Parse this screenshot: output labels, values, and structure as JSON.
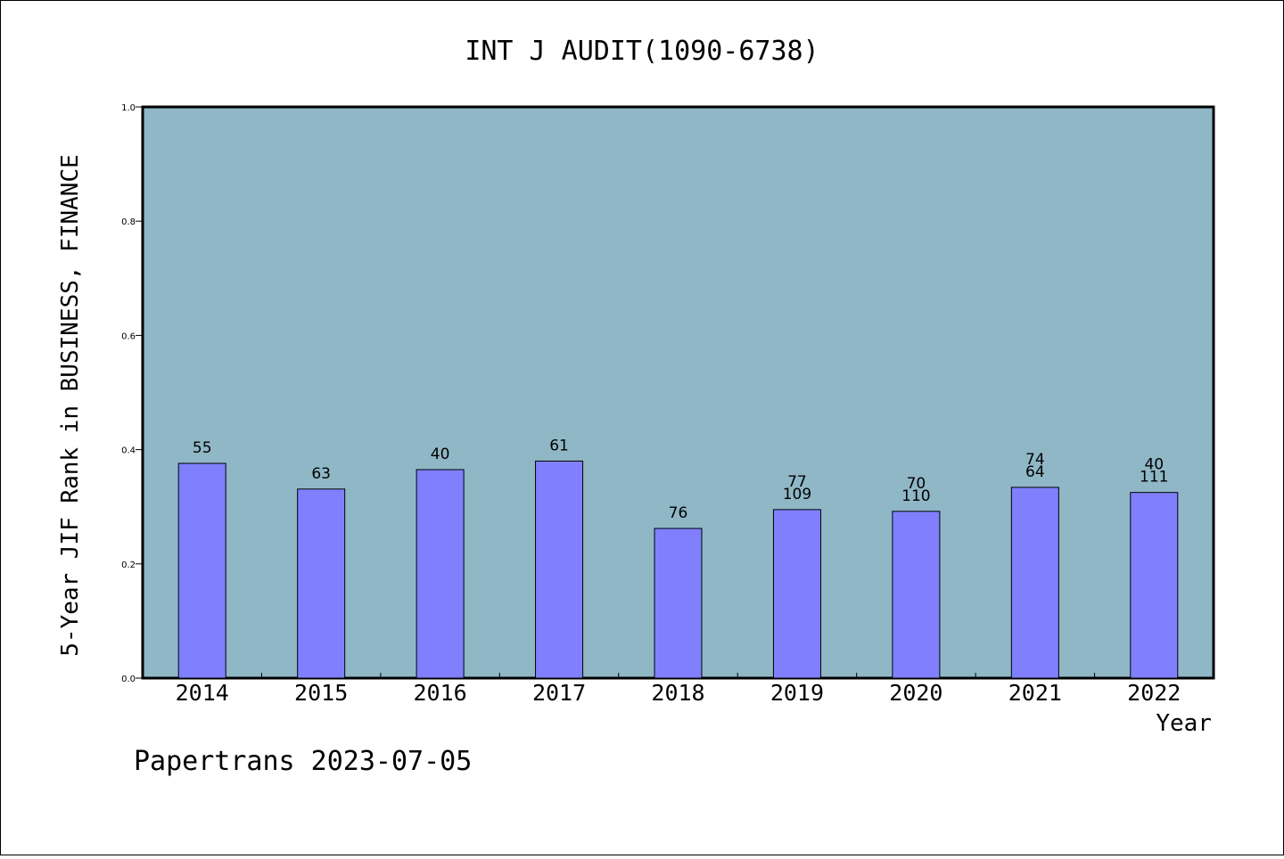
{
  "chart_data": {
    "type": "bar",
    "title": "INT J AUDIT(1090-6738)",
    "xlabel": "Year",
    "ylabel": "5-Year JIF Rank in BUSINESS, FINANCE",
    "ylim": [
      0.0,
      1.0
    ],
    "yticks": [
      "0.0",
      "0.2",
      "0.4",
      "0.6",
      "0.8",
      "1.0"
    ],
    "grid": false,
    "categories": [
      "2014",
      "2015",
      "2016",
      "2017",
      "2018",
      "2019",
      "2020",
      "2021",
      "2022"
    ],
    "values": [
      0.376,
      0.331,
      0.365,
      0.38,
      0.262,
      0.295,
      0.292,
      0.334,
      0.325
    ],
    "rank_labels": [
      [
        "55"
      ],
      [
        "63"
      ],
      [
        "40"
      ],
      [
        "61"
      ],
      [
        "76"
      ],
      [
        "77",
        "109"
      ],
      [
        "70",
        "110"
      ],
      [
        "74",
        "64"
      ],
      [
        "40",
        "111"
      ]
    ],
    "colors": {
      "background": "#8fb7c6",
      "bar": "#8080ff"
    }
  },
  "footer": "Papertrans 2023-07-05"
}
